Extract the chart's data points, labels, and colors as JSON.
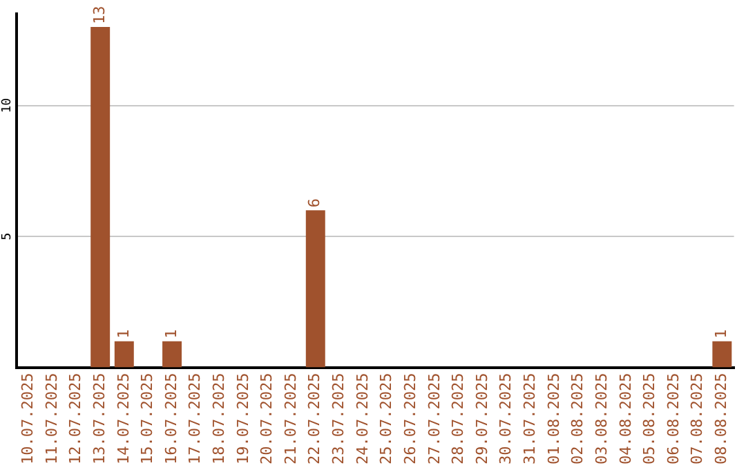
{
  "chart_data": {
    "type": "bar",
    "categories": [
      "10.07.2025",
      "11.07.2025",
      "12.07.2025",
      "13.07.2025",
      "14.07.2025",
      "15.07.2025",
      "16.07.2025",
      "17.07.2025",
      "18.07.2025",
      "19.07.2025",
      "20.07.2025",
      "21.07.2025",
      "22.07.2025",
      "23.07.2025",
      "24.07.2025",
      "25.07.2025",
      "26.07.2025",
      "27.07.2025",
      "28.07.2025",
      "29.07.2025",
      "30.07.2025",
      "31.07.2025",
      "01.08.2025",
      "02.08.2025",
      "03.08.2025",
      "04.08.2025",
      "05.08.2025",
      "06.08.2025",
      "07.08.2025",
      "08.08.2025"
    ],
    "values": [
      0,
      0,
      0,
      13,
      1,
      0,
      1,
      0,
      0,
      0,
      0,
      0,
      6,
      0,
      0,
      0,
      0,
      0,
      0,
      0,
      0,
      0,
      0,
      0,
      0,
      0,
      0,
      0,
      0,
      1
    ],
    "value_labels": [
      null,
      null,
      null,
      "13",
      "1",
      null,
      "1",
      null,
      null,
      null,
      null,
      null,
      "6",
      null,
      null,
      null,
      null,
      null,
      null,
      null,
      null,
      null,
      null,
      null,
      null,
      null,
      null,
      null,
      null,
      "1"
    ],
    "color": "#a0522d",
    "ylim": [
      0,
      13.5
    ],
    "yticks": [
      5,
      10
    ],
    "grid": "y",
    "legend": false
  }
}
